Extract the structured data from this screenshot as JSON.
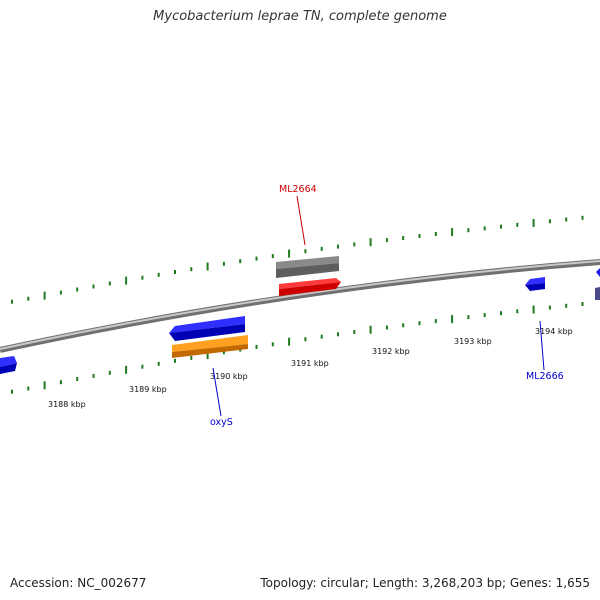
{
  "title": "Mycobacterium leprae TN, complete genome",
  "footer": {
    "accession": "Accession: NC_002677",
    "summary": "Topology: circular; Length: 3,268,203 bp; Genes: 1,655"
  },
  "tick_labels": [
    "3188 kbp",
    "3189 kbp",
    "3190 kbp",
    "3191 kbp",
    "3192 kbp",
    "3193 kbp",
    "3194 kbp"
  ],
  "gene_labels": [
    {
      "id": "ml2664",
      "text": "ML2664",
      "color": "#cc0000"
    },
    {
      "id": "oxys",
      "text": "oxyS",
      "color": "#0000cc"
    },
    {
      "id": "ml2666",
      "text": "ML2666",
      "color": "#0000cc"
    }
  ],
  "colors": {
    "backbone": "#8a8a8a",
    "tick": "#1e7a1e",
    "forward_gene": "#ee0000",
    "reverse_gene": "#1010ee",
    "pseudo_gene": "#6b6b6b",
    "rna_gene": "#ff9900"
  }
}
